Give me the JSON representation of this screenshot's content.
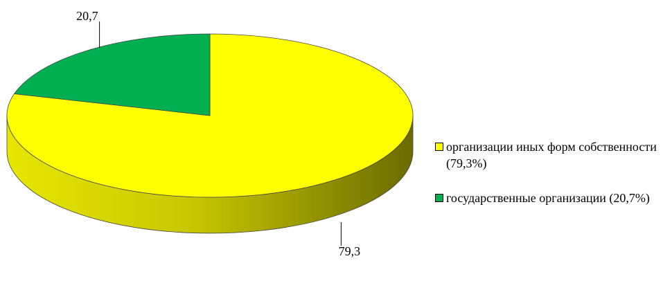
{
  "chart_data": {
    "type": "pie3d",
    "categories": [
      "организации иных форм собственности (79,3%)",
      "государственные организации (20,7%)"
    ],
    "values": [
      79.3,
      20.7
    ],
    "value_labels": [
      "79,3",
      "20,7"
    ],
    "colors": [
      "#ffff00",
      "#00b050"
    ],
    "legend": "right"
  }
}
